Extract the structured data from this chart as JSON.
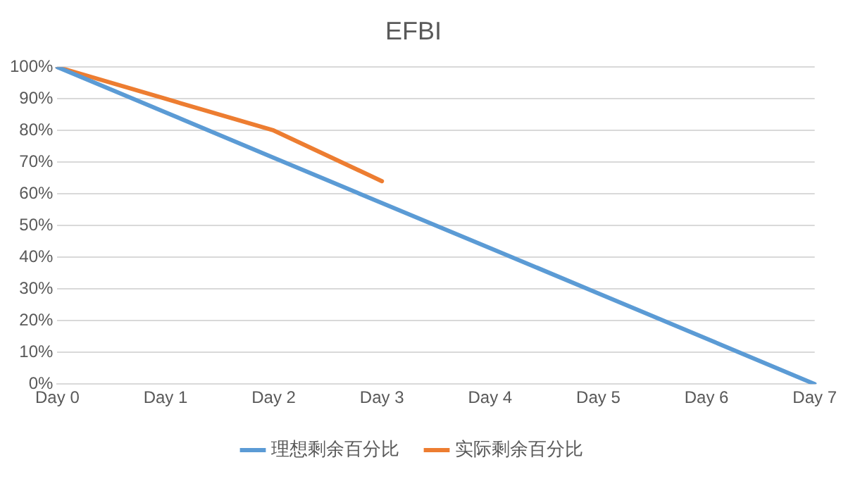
{
  "chart_data": {
    "type": "line",
    "title": "EFBI",
    "categories": [
      "Day 0",
      "Day 1",
      "Day 2",
      "Day 3",
      "Day 4",
      "Day 5",
      "Day 6",
      "Day 7"
    ],
    "series": [
      {
        "name": "理想剩余百分比",
        "color": "#5b9bd5",
        "values": [
          100,
          85.7,
          71.4,
          57.1,
          42.9,
          28.6,
          14.3,
          0
        ]
      },
      {
        "name": "实际剩余百分比",
        "color": "#ed7d31",
        "values": [
          100,
          90,
          80,
          64,
          null,
          null,
          null,
          null
        ]
      }
    ],
    "ylim": [
      0,
      100
    ],
    "yticks": [
      {
        "value": 0,
        "label": "0%"
      },
      {
        "value": 10,
        "label": "10%"
      },
      {
        "value": 20,
        "label": "20%"
      },
      {
        "value": 30,
        "label": "30%"
      },
      {
        "value": 40,
        "label": "40%"
      },
      {
        "value": 50,
        "label": "50%"
      },
      {
        "value": 60,
        "label": "60%"
      },
      {
        "value": 70,
        "label": "70%"
      },
      {
        "value": 80,
        "label": "80%"
      },
      {
        "value": 90,
        "label": "90%"
      },
      {
        "value": 100,
        "label": "100%"
      }
    ],
    "grid": "y",
    "legend": "bottom",
    "marker": "none",
    "line_style": "solid"
  }
}
